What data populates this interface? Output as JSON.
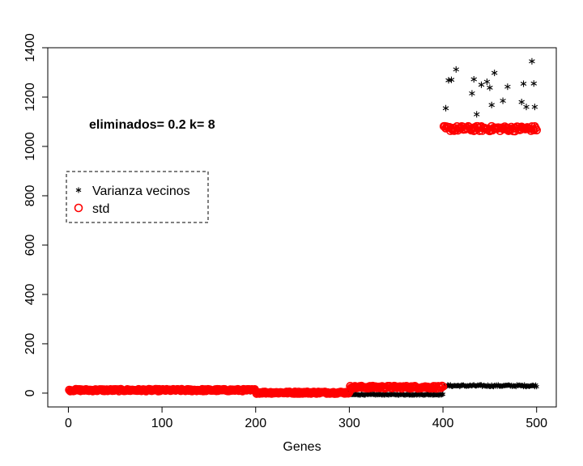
{
  "chart_data": {
    "type": "scatter",
    "title": "",
    "xlabel": "Genes",
    "ylabel": "",
    "xlim": [
      -22,
      521
    ],
    "ylim": [
      -56,
      1400
    ],
    "xticks": [
      0,
      100,
      200,
      300,
      400,
      500
    ],
    "yticks": [
      0,
      200,
      400,
      600,
      800,
      1000,
      1200,
      1400
    ],
    "grid": false,
    "annotation": "eliminados= 0.2 k= 8",
    "legend": {
      "placement": "left",
      "entries": [
        {
          "label": "Varianza vecinos",
          "marker": "star",
          "color": "#000000"
        },
        {
          "label": "std",
          "marker": "circle",
          "color": "#ff0000"
        }
      ]
    },
    "series": [
      {
        "name": "Varianza vecinos",
        "marker": "star",
        "color": "#000000",
        "segments": [
          {
            "x_range": [
              1,
              200
            ],
            "y_center": 10,
            "y_jitter": 6
          },
          {
            "x_range": [
              201,
              300
            ],
            "y_center": 2,
            "y_jitter": 3
          },
          {
            "x_range": [
              301,
              400
            ],
            "y_center": -6,
            "y_jitter": 2
          },
          {
            "x_range": [
              401,
              500
            ],
            "y_center": 30,
            "y_jitter": 4
          }
        ],
        "points": [
          [
            403,
            1155
          ],
          [
            406,
            1268
          ],
          [
            409,
            1270
          ],
          [
            414,
            1312
          ],
          [
            431,
            1215
          ],
          [
            433,
            1272
          ],
          [
            436,
            1130
          ],
          [
            441,
            1250
          ],
          [
            447,
            1262
          ],
          [
            450,
            1238
          ],
          [
            452,
            1168
          ],
          [
            455,
            1298
          ],
          [
            464,
            1185
          ],
          [
            469,
            1242
          ],
          [
            484,
            1180
          ],
          [
            486,
            1254
          ],
          [
            489,
            1160
          ],
          [
            495,
            1345
          ],
          [
            497,
            1255
          ],
          [
            498,
            1160
          ]
        ]
      },
      {
        "name": "std",
        "marker": "circle",
        "color": "#ff0000",
        "segments": [
          {
            "x_range": [
              1,
              200
            ],
            "y_center": 12,
            "y_jitter": 4
          },
          {
            "x_range": [
              201,
              300
            ],
            "y_center": 2,
            "y_jitter": 4
          },
          {
            "x_range": [
              301,
              400
            ],
            "y_center": 24,
            "y_jitter": 5
          },
          {
            "x_range": [
              401,
              500
            ],
            "y_center": 1072,
            "y_jitter": 10
          }
        ]
      }
    ]
  }
}
